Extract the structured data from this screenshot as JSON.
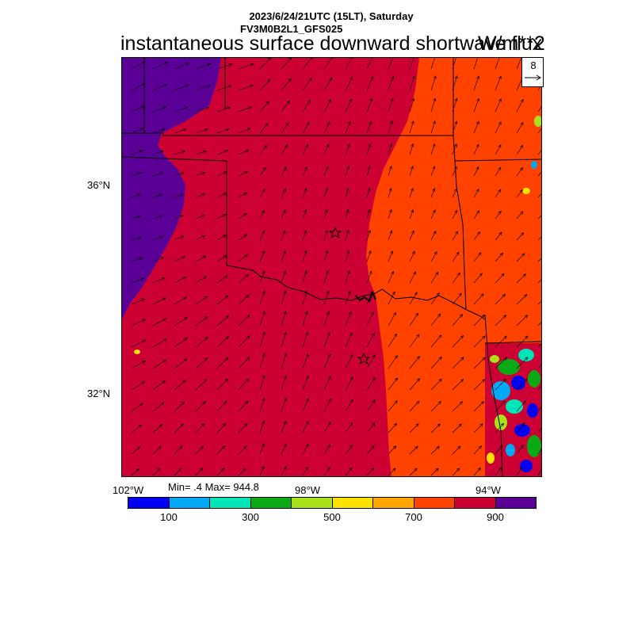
{
  "header": {
    "datetime": "2023/6/24/21UTC (15LT), Saturday",
    "model": "FV3M0B2L1_GFS025",
    "title": "instantaneous surface downward shortwave flux",
    "units": "W/m**2"
  },
  "map": {
    "lat_labels": [
      "36°N",
      "32°N"
    ],
    "lon_labels": [
      "102°W",
      "98°W",
      "94°W"
    ],
    "stats": "Min= .4 Max= 944.8",
    "wind_reference": {
      "value": "8"
    }
  },
  "colorbar": {
    "colors": [
      "#0000f5",
      "#00a8f5",
      "#00e5b8",
      "#0aaa14",
      "#a8e31a",
      "#ffe100",
      "#ffa600",
      "#ff4200",
      "#cc0033",
      "#5a0096"
    ],
    "labels": [
      "100",
      "300",
      "500",
      "700",
      "900"
    ]
  },
  "field": {
    "fill_colors": {
      "violet": "#5a0096",
      "crimson": "#cc0033",
      "orange": "#ff4200"
    },
    "markers": [
      "city-star-oklahoma-city",
      "city-star-dallas"
    ]
  }
}
